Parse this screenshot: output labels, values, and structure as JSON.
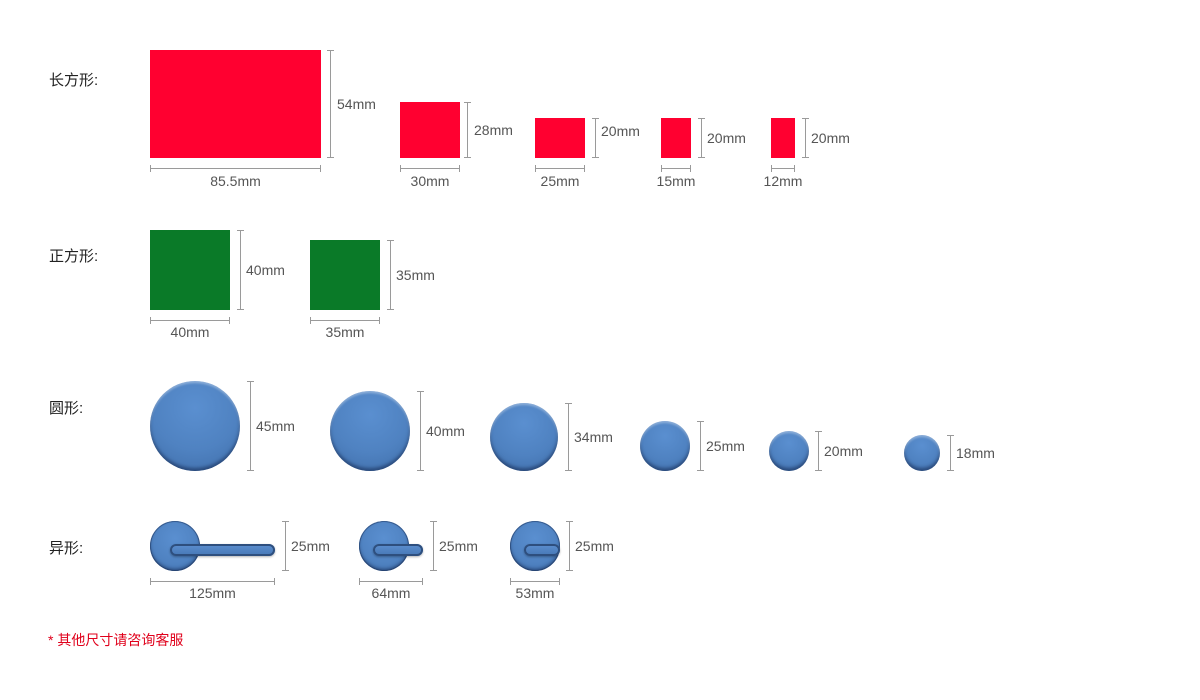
{
  "rows": {
    "rectangle": {
      "label": "长方形:"
    },
    "square": {
      "label": "正方形:"
    },
    "circle": {
      "label": "圆形:"
    },
    "shaped": {
      "label": "异形:"
    }
  },
  "rectangles": [
    {
      "w": "85.5mm",
      "h": "54mm"
    },
    {
      "w": "30mm",
      "h": "28mm"
    },
    {
      "w": "25mm",
      "h": "20mm"
    },
    {
      "w": "15mm",
      "h": "20mm"
    },
    {
      "w": "12mm",
      "h": "20mm"
    }
  ],
  "squares": [
    {
      "w": "40mm",
      "h": "40mm"
    },
    {
      "w": "35mm",
      "h": "35mm"
    }
  ],
  "circles": [
    {
      "d": "45mm"
    },
    {
      "d": "40mm"
    },
    {
      "d": "34mm"
    },
    {
      "d": "25mm"
    },
    {
      "d": "20mm"
    },
    {
      "d": "18mm"
    }
  ],
  "shaped": [
    {
      "w": "125mm",
      "h": "25mm"
    },
    {
      "w": "64mm",
      "h": "25mm"
    },
    {
      "w": "53mm",
      "h": "25mm"
    }
  ],
  "colors": {
    "rectangle": "#ff0030",
    "square": "#0a7a28",
    "circle": "#4f82c1",
    "footnote": "#e0001b"
  },
  "footnote": "* 其他尺寸请咨询客服"
}
